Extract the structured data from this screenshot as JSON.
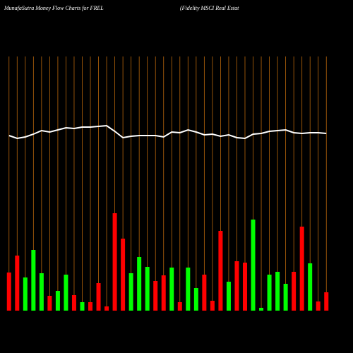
{
  "chart_data": {
    "type": "bar",
    "title": "MunafaSutra  Money Flow  Charts for FREL",
    "subtitle": "(Fidelity MSCI Real Estat",
    "categories": [
      null,
      null,
      null,
      null,
      null,
      null,
      null,
      null,
      null,
      null,
      null,
      null,
      null,
      null,
      null,
      null,
      null,
      null,
      null,
      null,
      null,
      null,
      null,
      null,
      null,
      null,
      null,
      null,
      null,
      null,
      null,
      null,
      null,
      null,
      null,
      null,
      null,
      null,
      null,
      null
    ],
    "values": [
      54,
      78,
      47,
      86,
      53,
      21,
      28,
      51,
      22,
      12,
      12,
      39,
      6,
      138,
      102,
      53,
      76,
      62,
      42,
      50,
      61,
      12,
      61,
      32,
      51,
      14,
      113,
      41,
      70,
      68,
      129,
      4,
      51,
      55,
      38,
      55,
      119,
      67,
      13,
      26
    ],
    "colors": [
      "#ff0000",
      "#ff0000",
      "#00ff00",
      "#00ff00",
      "#00ff00",
      "#ff0000",
      "#00ff00",
      "#00ff00",
      "#ff0000",
      "#00ff00",
      "#ff0000",
      "#ff0000",
      "#ff0000",
      "#ff0000",
      "#ff0000",
      "#00ff00",
      "#00ff00",
      "#00ff00",
      "#ff0000",
      "#ff0000",
      "#00ff00",
      "#ff0000",
      "#00ff00",
      "#00ff00",
      "#ff0000",
      "#ff0000",
      "#ff0000",
      "#00ff00",
      "#ff0000",
      "#ff0000",
      "#00ff00",
      "#00ff00",
      "#00ff00",
      "#00ff00",
      "#00ff00",
      "#ff0000",
      "#ff0000",
      "#00ff00",
      "#ff0000",
      "#ff0000"
    ],
    "line": {
      "color": "#ffffff",
      "values": [
        248,
        244,
        246,
        250,
        255,
        253,
        256,
        259,
        258,
        260,
        260,
        261,
        262,
        254,
        245,
        247,
        248,
        248,
        248,
        246,
        253,
        252,
        256,
        253,
        249,
        250,
        247,
        249,
        245,
        244,
        250,
        251,
        254,
        255,
        256,
        252,
        251,
        252,
        252,
        251
      ]
    },
    "grid_color": "#b8660b",
    "ylim": [
      0,
      360
    ]
  }
}
